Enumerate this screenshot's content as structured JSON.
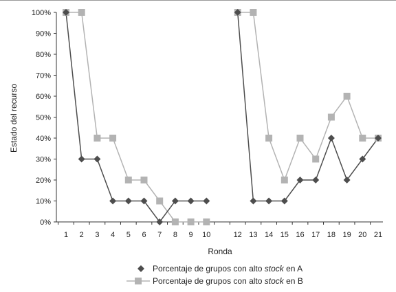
{
  "chart_data": {
    "type": "line",
    "x": [
      1,
      2,
      3,
      4,
      5,
      6,
      7,
      8,
      9,
      10,
      11,
      12,
      13,
      14,
      15,
      16,
      17,
      18,
      19,
      20,
      21
    ],
    "x_tick_labels": [
      "1",
      "2",
      "3",
      "4",
      "5",
      "6",
      "7",
      "8",
      "9",
      "10",
      "12",
      "13",
      "14",
      "15",
      "16",
      "17",
      "18",
      "19",
      "20",
      "21"
    ],
    "x_tick_positions": [
      1,
      2,
      3,
      4,
      5,
      6,
      7,
      8,
      9,
      10,
      12,
      13,
      14,
      15,
      16,
      17,
      18,
      19,
      20,
      21
    ],
    "xlabel": "Ronda",
    "ylabel": "Estado del recurso",
    "ylim": [
      0,
      100
    ],
    "y_ticks": [
      0,
      10,
      20,
      30,
      40,
      50,
      60,
      70,
      80,
      90,
      100
    ],
    "y_tick_labels": [
      "0%",
      "10%",
      "20%",
      "30%",
      "40%",
      "50%",
      "60%",
      "70%",
      "80%",
      "90%",
      "100%"
    ],
    "grid": false,
    "legend_position": "bottom",
    "series": [
      {
        "legend_prefix": "Porcentaje de grupos con alto ",
        "legend_italic": "stock",
        "legend_suffix": " en A",
        "color": "#4d4d4d",
        "marker": "diamond",
        "values": [
          100,
          30,
          30,
          10,
          10,
          10,
          0,
          10,
          10,
          10,
          null,
          100,
          10,
          10,
          10,
          20,
          20,
          40,
          20,
          30,
          40
        ]
      },
      {
        "legend_prefix": "Porcentaje de grupos con alto ",
        "legend_italic": "stock",
        "legend_suffix": " en B",
        "color": "#b3b3b3",
        "marker": "square",
        "values": [
          100,
          100,
          40,
          40,
          20,
          20,
          10,
          0,
          0,
          0,
          null,
          100,
          100,
          40,
          20,
          40,
          30,
          50,
          60,
          40,
          40
        ]
      }
    ]
  }
}
